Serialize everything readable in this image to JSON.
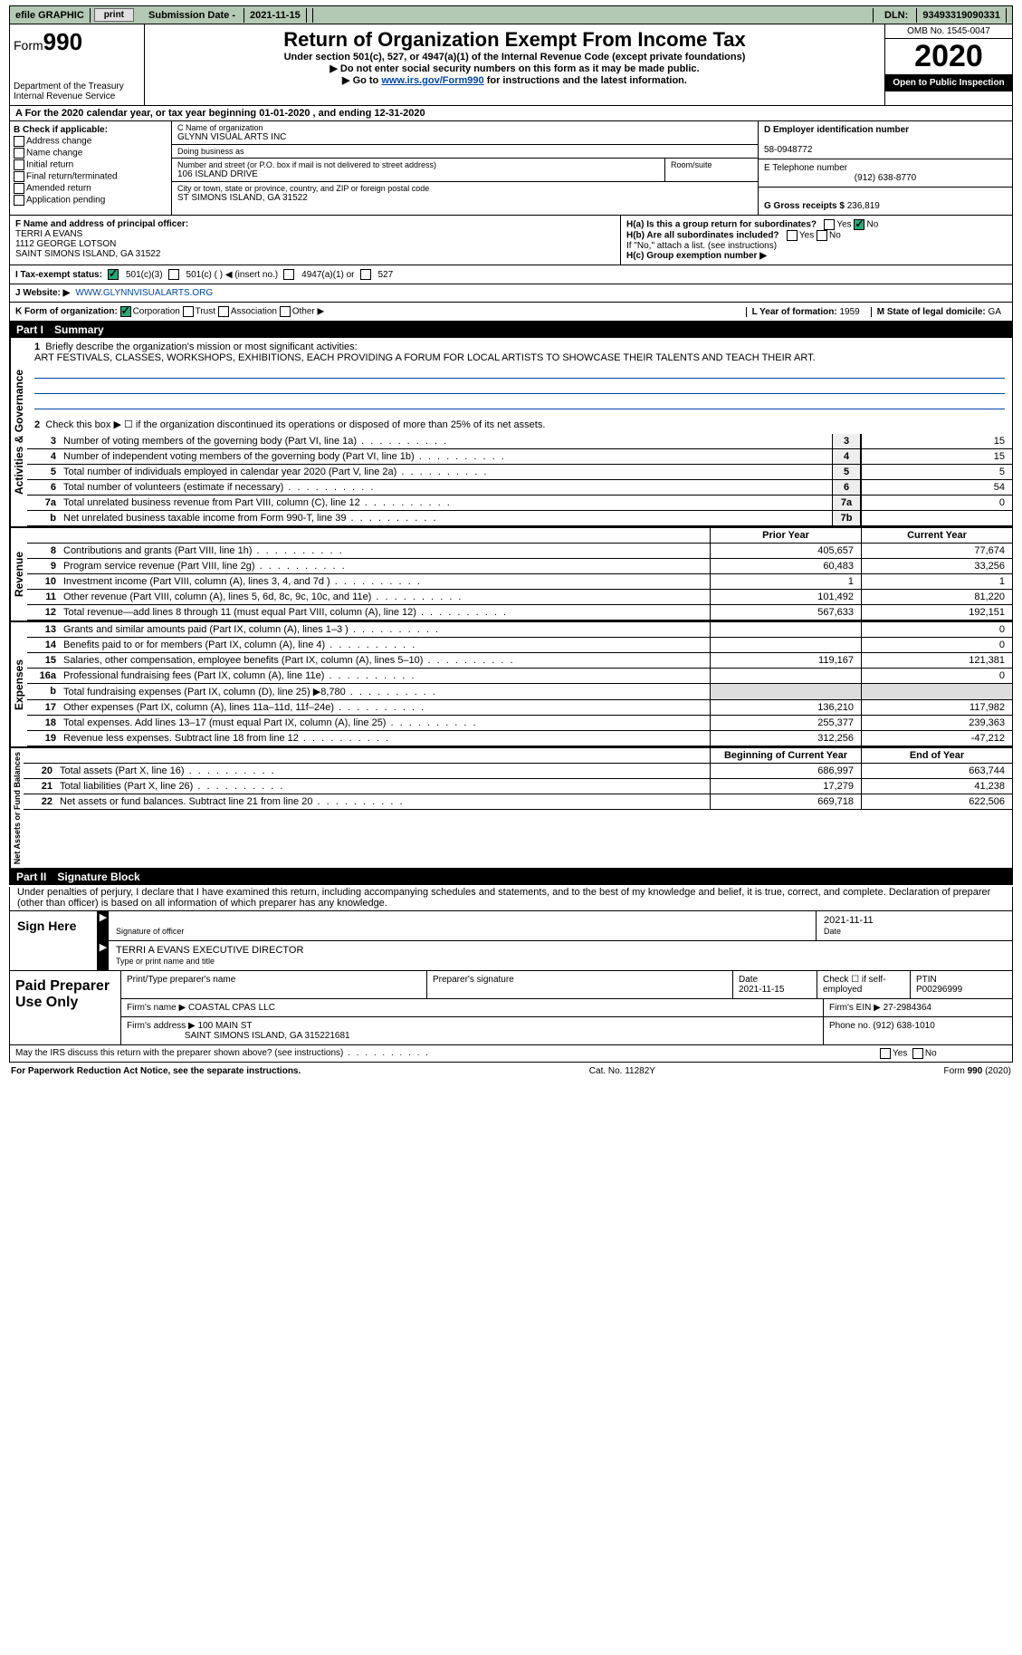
{
  "topbar": {
    "efile": "efile GRAPHIC",
    "print": "print",
    "sub_label": "Submission Date - ",
    "sub_date": "2021-11-15",
    "dln_label": "DLN: ",
    "dln": "93493319090331"
  },
  "header": {
    "form_prefix": "Form",
    "form_num": "990",
    "dept1": "Department of the Treasury",
    "dept2": "Internal Revenue Service",
    "title": "Return of Organization Exempt From Income Tax",
    "sub1": "Under section 501(c), 527, or 4947(a)(1) of the Internal Revenue Code (except private foundations)",
    "sub2": "▶ Do not enter social security numbers on this form as it may be made public.",
    "sub3a": "▶ Go to ",
    "sub3_link": "www.irs.gov/Form990",
    "sub3b": " for instructions and the latest information.",
    "omb": "OMB No. 1545-0047",
    "year": "2020",
    "open": "Open to Public Inspection"
  },
  "row_a": {
    "text_a": "A  For the 2020 calendar year, or tax year beginning ",
    "begin": "01-01-2020",
    "mid": "  , and ending ",
    "end": "12-31-2020"
  },
  "col_b": {
    "title": "B Check if applicable:",
    "opts": [
      "Address change",
      "Name change",
      "Initial return",
      "Final return/terminated",
      "Amended return",
      "Application pending"
    ]
  },
  "col_c": {
    "name_lbl": "C Name of organization",
    "name": "GLYNN VISUAL ARTS INC",
    "dba_lbl": "Doing business as",
    "dba": "",
    "addr_lbl": "Number and street (or P.O. box if mail is not delivered to street address)",
    "room_lbl": "Room/suite",
    "addr": "106 ISLAND DRIVE",
    "city_lbl": "City or town, state or province, country, and ZIP or foreign postal code",
    "city": "ST SIMONS ISLAND, GA  31522"
  },
  "col_d": {
    "d_lbl": "D Employer identification number",
    "ein": "58-0948772",
    "e_lbl": "E Telephone number",
    "phone": "(912) 638-8770",
    "g_lbl": "G Gross receipts $ ",
    "g_val": "236,819"
  },
  "fgh": {
    "f_lbl": "F Name and address of principal officer:",
    "f_name": "TERRI A EVANS",
    "f_addr1": "1112 GEORGE LOTSON",
    "f_addr2": "SAINT SIMONS ISLAND, GA  31522",
    "ha_lbl": "H(a)  Is this a group return for subordinates?",
    "hb_lbl": "H(b)  Are all subordinates included?",
    "h_note": "If \"No,\" attach a list. (see instructions)",
    "hc_lbl": "H(c)  Group exemption number ▶",
    "yes": "Yes",
    "no": "No"
  },
  "i_row": {
    "lbl": "I   Tax-exempt status:",
    "o1": "501(c)(3)",
    "o2": "501(c) (  ) ◀ (insert no.)",
    "o3": "4947(a)(1) or",
    "o4": "527"
  },
  "j_row": {
    "lbl": "J   Website: ▶ ",
    "url": "WWW.GLYNNVISUALARTS.ORG"
  },
  "k_row": {
    "lbl": "K Form of organization:",
    "o1": "Corporation",
    "o2": "Trust",
    "o3": "Association",
    "o4": "Other ▶",
    "l_lbl": "L Year of formation: ",
    "l_val": "1959",
    "m_lbl": "M State of legal domicile: ",
    "m_val": "GA"
  },
  "part1": {
    "label": "Part I",
    "title": "Summary",
    "q1": "Briefly describe the organization's mission or most significant activities:",
    "mission": "ART FESTIVALS, CLASSES, WORKSHOPS, EXHIBITIONS, EACH PROVIDING A FORUM FOR LOCAL ARTISTS TO SHOWCASE THEIR TALENTS AND TEACH THEIR ART.",
    "q2": "Check this box ▶ ☐  if the organization discontinued its operations or disposed of more than 25% of its net assets.",
    "lines_gov": [
      {
        "n": "3",
        "d": "Number of voting members of the governing body (Part VI, line 1a)",
        "k": "3",
        "v": "15"
      },
      {
        "n": "4",
        "d": "Number of independent voting members of the governing body (Part VI, line 1b)",
        "k": "4",
        "v": "15"
      },
      {
        "n": "5",
        "d": "Total number of individuals employed in calendar year 2020 (Part V, line 2a)",
        "k": "5",
        "v": "5"
      },
      {
        "n": "6",
        "d": "Total number of volunteers (estimate if necessary)",
        "k": "6",
        "v": "54"
      },
      {
        "n": "7a",
        "d": "Total unrelated business revenue from Part VIII, column (C), line 12",
        "k": "7a",
        "v": "0"
      },
      {
        "n": "b",
        "d": "Net unrelated business taxable income from Form 990-T, line 39",
        "k": "7b",
        "v": ""
      }
    ],
    "head_prior": "Prior Year",
    "head_curr": "Current Year",
    "revenue": [
      {
        "n": "8",
        "d": "Contributions and grants (Part VIII, line 1h)",
        "p": "405,657",
        "c": "77,674"
      },
      {
        "n": "9",
        "d": "Program service revenue (Part VIII, line 2g)",
        "p": "60,483",
        "c": "33,256"
      },
      {
        "n": "10",
        "d": "Investment income (Part VIII, column (A), lines 3, 4, and 7d )",
        "p": "1",
        "c": "1"
      },
      {
        "n": "11",
        "d": "Other revenue (Part VIII, column (A), lines 5, 6d, 8c, 9c, 10c, and 11e)",
        "p": "101,492",
        "c": "81,220"
      },
      {
        "n": "12",
        "d": "Total revenue—add lines 8 through 11 (must equal Part VIII, column (A), line 12)",
        "p": "567,633",
        "c": "192,151"
      }
    ],
    "expenses": [
      {
        "n": "13",
        "d": "Grants and similar amounts paid (Part IX, column (A), lines 1–3 )",
        "p": "",
        "c": "0"
      },
      {
        "n": "14",
        "d": "Benefits paid to or for members (Part IX, column (A), line 4)",
        "p": "",
        "c": "0"
      },
      {
        "n": "15",
        "d": "Salaries, other compensation, employee benefits (Part IX, column (A), lines 5–10)",
        "p": "119,167",
        "c": "121,381"
      },
      {
        "n": "16a",
        "d": "Professional fundraising fees (Part IX, column (A), line 11e)",
        "p": "",
        "c": "0"
      },
      {
        "n": "b",
        "d": "Total fundraising expenses (Part IX, column (D), line 25) ▶8,780",
        "p": "SHADE",
        "c": "SHADE"
      },
      {
        "n": "17",
        "d": "Other expenses (Part IX, column (A), lines 11a–11d, 11f–24e)",
        "p": "136,210",
        "c": "117,982"
      },
      {
        "n": "18",
        "d": "Total expenses. Add lines 13–17 (must equal Part IX, column (A), line 25)",
        "p": "255,377",
        "c": "239,363"
      },
      {
        "n": "19",
        "d": "Revenue less expenses. Subtract line 18 from line 12",
        "p": "312,256",
        "c": "-47,212"
      }
    ],
    "head_beg": "Beginning of Current Year",
    "head_end": "End of Year",
    "netassets": [
      {
        "n": "20",
        "d": "Total assets (Part X, line 16)",
        "p": "686,997",
        "c": "663,744"
      },
      {
        "n": "21",
        "d": "Total liabilities (Part X, line 26)",
        "p": "17,279",
        "c": "41,238"
      },
      {
        "n": "22",
        "d": "Net assets or fund balances. Subtract line 21 from line 20",
        "p": "669,718",
        "c": "622,506"
      }
    ],
    "vlabels": {
      "gov": "Activities & Governance",
      "rev": "Revenue",
      "exp": "Expenses",
      "net": "Net Assets or Fund Balances"
    }
  },
  "part2": {
    "label": "Part II",
    "title": "Signature Block",
    "decl": "Under penalties of perjury, I declare that I have examined this return, including accompanying schedules and statements, and to the best of my knowledge and belief, it is true, correct, and complete. Declaration of preparer (other than officer) is based on all information of which preparer has any knowledge.",
    "sign_here": "Sign Here",
    "sig_officer": "Signature of officer",
    "date_lbl": "Date",
    "sig_date": "2021-11-11",
    "name_title": "TERRI A EVANS  EXECUTIVE DIRECTOR",
    "type_lbl": "Type or print name and title",
    "paid": "Paid Preparer Use Only",
    "p_print": "Print/Type preparer's name",
    "p_sig": "Preparer's signature",
    "p_date_lbl": "Date",
    "p_date": "2021-11-15",
    "p_check": "Check ☐ if self-employed",
    "ptin_lbl": "PTIN",
    "ptin": "P00296999",
    "firm_lbl": "Firm's name  ▶ ",
    "firm": "COASTAL CPAS LLC",
    "fein_lbl": "Firm's EIN ▶ ",
    "fein": "27-2984364",
    "faddr_lbl": "Firm's address ▶ ",
    "faddr1": "100 MAIN ST",
    "faddr2": "SAINT SIMONS ISLAND, GA  315221681",
    "fphone_lbl": "Phone no. ",
    "fphone": "(912) 638-1010",
    "may": "May the IRS discuss this return with the preparer shown above? (see instructions)",
    "yes": "Yes",
    "no": "No"
  },
  "footer": {
    "pra": "For Paperwork Reduction Act Notice, see the separate instructions.",
    "cat": "Cat. No. 11282Y",
    "form": "Form 990 (2020)"
  }
}
